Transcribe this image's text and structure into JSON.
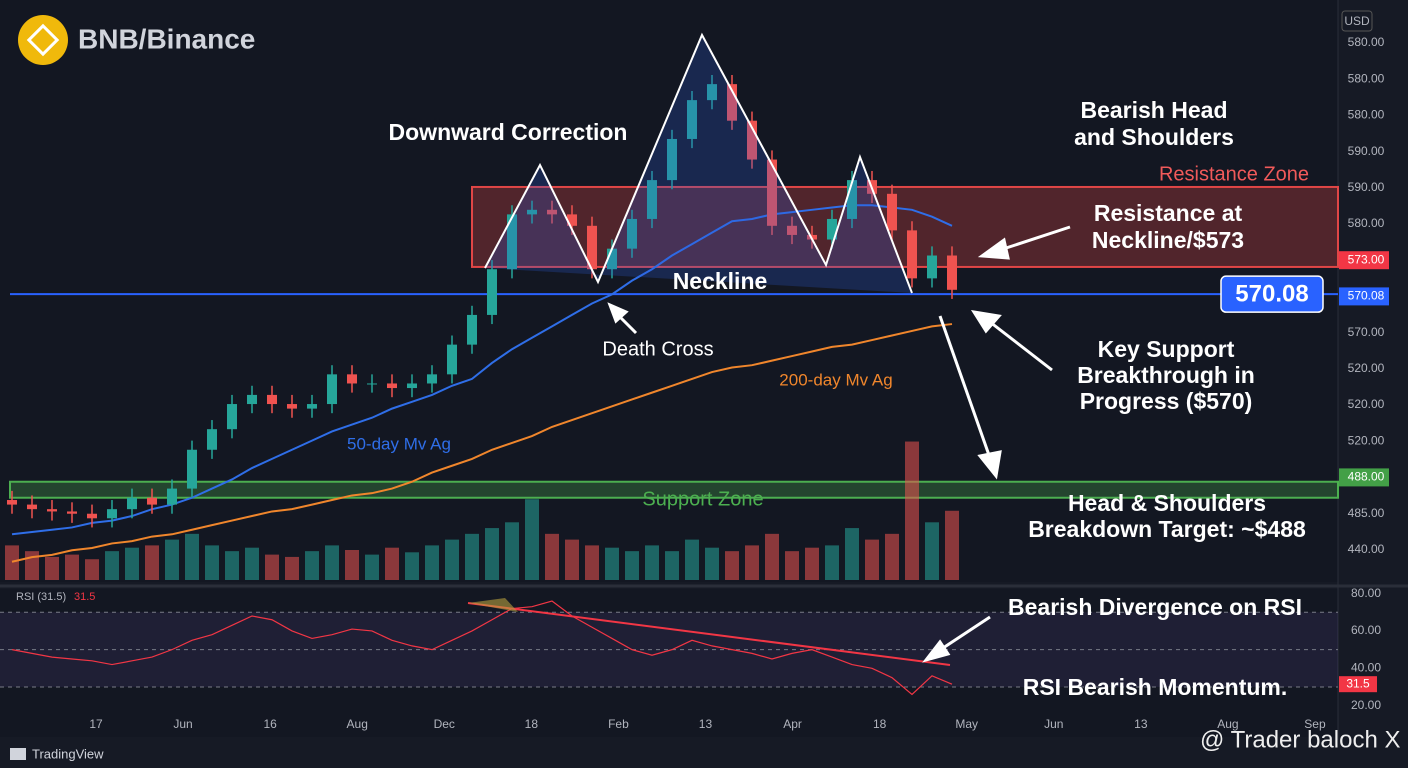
{
  "header": {
    "title": "BNB/Binance",
    "currency": "USD"
  },
  "chart_data": {
    "type": "candlestick",
    "open": [
      480,
      478,
      476,
      475,
      474,
      472,
      476,
      481,
      478,
      485,
      502,
      511,
      522,
      526,
      522,
      520,
      522,
      535,
      531,
      531,
      529,
      531,
      535,
      548,
      561,
      581,
      605,
      607,
      605,
      600,
      581,
      590,
      603,
      620,
      638,
      655,
      662,
      646,
      629,
      600,
      596,
      594,
      603,
      620,
      614,
      598,
      577,
      587
    ],
    "high": [
      484,
      482,
      480,
      479,
      478,
      480,
      485,
      485,
      489,
      506,
      515,
      526,
      530,
      530,
      526,
      526,
      539,
      539,
      535,
      535,
      535,
      539,
      552,
      565,
      585,
      609,
      611,
      611,
      609,
      604,
      594,
      607,
      624,
      642,
      659,
      666,
      666,
      650,
      633,
      604,
      600,
      607,
      624,
      624,
      618,
      602,
      591,
      591
    ],
    "low": [
      474,
      472,
      471,
      470,
      468,
      468,
      472,
      474,
      474,
      481,
      498,
      507,
      518,
      518,
      516,
      516,
      518,
      527,
      527,
      525,
      525,
      527,
      531,
      544,
      557,
      577,
      601,
      601,
      596,
      577,
      577,
      586,
      599,
      616,
      634,
      651,
      642,
      625,
      596,
      592,
      590,
      590,
      599,
      610,
      594,
      573,
      573,
      568
    ],
    "close": [
      478,
      476,
      475,
      474,
      472,
      476,
      481,
      478,
      485,
      502,
      511,
      522,
      526,
      522,
      520,
      522,
      535,
      531,
      531,
      529,
      531,
      535,
      548,
      561,
      581,
      605,
      607,
      605,
      600,
      581,
      590,
      603,
      620,
      638,
      655,
      662,
      646,
      629,
      600,
      596,
      594,
      603,
      620,
      614,
      598,
      577,
      587,
      572
    ],
    "up_color": "#26a69a",
    "down_color": "#ef5350",
    "ylim": [
      445,
      680
    ],
    "price_scale": [
      "580.00",
      "580.00",
      "580.00",
      "590.00",
      "590.00",
      "580.00",
      {
        "label": "573.00",
        "color": "#f23645"
      },
      {
        "label": "570.08",
        "color": "#2962ff"
      },
      "570.00",
      "520.00",
      "520.00",
      "520.00",
      {
        "label": "488.00",
        "color": "#43a047"
      },
      "485.00",
      "440.00"
    ],
    "x_labels": [
      "17",
      "Jun",
      "16",
      "Aug",
      "Dec",
      "18",
      "Feb",
      "13",
      "Apr",
      "18",
      "May",
      "Jun",
      "13",
      "Aug",
      "Sep"
    ],
    "moving_averages": [
      {
        "name": "50-day Mv Ag",
        "color": "#2f6ee8",
        "values": [
          465,
          466,
          467,
          468,
          470,
          471,
          473,
          476,
          478,
          481,
          485,
          489,
          494,
          498,
          502,
          506,
          510,
          513,
          516,
          520,
          523,
          526,
          530,
          533,
          540,
          546,
          551,
          556,
          561,
          566,
          570,
          576,
          581,
          587,
          592,
          597,
          602,
          603,
          605,
          606,
          607,
          608,
          609,
          609,
          608,
          607,
          604,
          600
        ]
      },
      {
        "name": "200-day Mv Ag",
        "color": "#f0862c",
        "values": [
          453,
          455,
          456,
          458,
          459,
          461,
          462,
          464,
          465,
          467,
          469,
          471,
          473,
          475,
          476,
          478,
          480,
          482,
          483,
          485,
          488,
          492,
          495,
          498,
          502,
          505,
          508,
          512,
          515,
          518,
          521,
          524,
          527,
          530,
          533,
          536,
          538,
          539,
          541,
          543,
          545,
          547,
          548,
          550,
          552,
          554,
          556,
          557
        ]
      }
    ],
    "volume": {
      "ylim": [
        0,
        130
      ],
      "values": [
        30,
        25,
        20,
        22,
        18,
        25,
        28,
        30,
        35,
        40,
        30,
        25,
        28,
        22,
        20,
        25,
        30,
        26,
        22,
        28,
        24,
        30,
        35,
        40,
        45,
        50,
        70,
        40,
        35,
        30,
        28,
        25,
        30,
        25,
        35,
        28,
        25,
        30,
        40,
        25,
        28,
        30,
        45,
        35,
        40,
        120,
        50,
        60
      ]
    },
    "neckline": {
      "label": "Neckline",
      "value": 570.08,
      "color": "#2962ff"
    },
    "resistance_zone": {
      "label": "Resistance Zone",
      "range": [
        582,
        617
      ],
      "color": "#e04646"
    },
    "support_zone": {
      "label": "Support Zone",
      "range": [
        481,
        488
      ],
      "color": "#4caf50"
    },
    "annotations": {
      "correction": "Downward Correction",
      "pattern": [
        "Bearish Head",
        "and Shoulders"
      ],
      "resistance": [
        "Resistance at",
        "Neckline/$573"
      ],
      "death_cross": "Death Cross",
      "support": [
        "Key Support",
        "Breakthrough in",
        "Progress ($570)"
      ],
      "target": [
        "Head & Shoulders",
        "Breakdown Target: ~$488"
      ],
      "divergence": "Bearish Divergence on RSI",
      "momentum": "RSI Bearish Momentum."
    },
    "rsi": {
      "label": "RSI (31.5)",
      "color": "#f23645",
      "values": [
        50,
        48,
        46,
        45,
        44,
        42,
        44,
        46,
        50,
        55,
        58,
        63,
        68,
        66,
        60,
        56,
        58,
        61,
        60,
        55,
        52,
        50,
        55,
        60,
        66,
        72,
        73,
        76,
        68,
        62,
        56,
        50,
        47,
        50,
        55,
        52,
        50,
        48,
        45,
        48,
        50,
        46,
        42,
        40,
        35,
        26,
        36,
        31.5
      ],
      "ylim": [
        15,
        83
      ],
      "band": [
        30,
        70
      ],
      "levels": [
        30,
        50,
        70
      ],
      "yticks": [
        {
          "value": 80,
          "label": "80.00"
        },
        {
          "value": 60,
          "label": "60.00"
        },
        {
          "value": 40,
          "label": "40.00"
        },
        {
          "value": 20,
          "label": "20.00"
        }
      ]
    }
  },
  "footer": {
    "brand": "TradingView",
    "watermark": "@ Trader baloch X"
  }
}
